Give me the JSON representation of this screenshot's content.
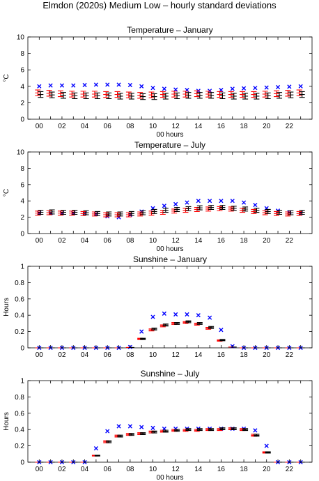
{
  "page_title": "Elmdon (2020s) Medium Low – hourly standard deviations",
  "colors": {
    "observed": "#0000ff",
    "ensemble": "#ff0000",
    "reference": "#000000"
  },
  "chart_data": [
    {
      "type": "scatter",
      "title": "Temperature – January",
      "xlabel": "00 hours",
      "ylabel": "°C",
      "ylim": [
        0,
        10
      ],
      "yticks": [
        "0",
        "2",
        "4",
        "6",
        "8",
        "10"
      ],
      "xticks": [
        "00",
        "02",
        "04",
        "06",
        "08",
        "10",
        "12",
        "14",
        "16",
        "18",
        "20",
        "22"
      ],
      "x": [
        0,
        1,
        2,
        3,
        4,
        5,
        6,
        7,
        8,
        9,
        10,
        11,
        12,
        13,
        14,
        15,
        16,
        17,
        18,
        19,
        20,
        21,
        22,
        23
      ],
      "series": [
        {
          "marker": "x",
          "color": "#0000ff",
          "values": [
            4.0,
            4.1,
            4.1,
            4.1,
            4.15,
            4.2,
            4.2,
            4.2,
            4.15,
            4.0,
            3.8,
            3.7,
            3.6,
            3.55,
            3.45,
            3.45,
            3.55,
            3.7,
            3.75,
            3.8,
            3.85,
            3.9,
            3.95,
            4.0
          ]
        },
        {
          "marker": "errorbar",
          "color": "#ff0000",
          "values": [
            3.2,
            3.15,
            3.1,
            3.05,
            3.05,
            3.05,
            3.0,
            3.0,
            2.95,
            2.9,
            2.95,
            3.0,
            3.05,
            3.05,
            3.1,
            3.05,
            3.0,
            3.0,
            3.0,
            3.0,
            3.05,
            3.1,
            3.15,
            3.2
          ],
          "err": [
            0.35,
            0.35,
            0.35,
            0.35,
            0.35,
            0.35,
            0.35,
            0.35,
            0.35,
            0.35,
            0.35,
            0.35,
            0.35,
            0.35,
            0.35,
            0.35,
            0.35,
            0.35,
            0.35,
            0.35,
            0.35,
            0.35,
            0.35,
            0.35
          ]
        },
        {
          "marker": "errorbar",
          "color": "#000000",
          "values": [
            3.0,
            2.95,
            2.9,
            2.85,
            2.85,
            2.85,
            2.85,
            2.8,
            2.8,
            2.75,
            2.75,
            2.8,
            2.85,
            2.9,
            2.9,
            2.9,
            2.85,
            2.8,
            2.8,
            2.8,
            2.85,
            2.9,
            2.95,
            3.0
          ],
          "err": [
            0.35,
            0.35,
            0.35,
            0.35,
            0.35,
            0.35,
            0.35,
            0.35,
            0.35,
            0.35,
            0.35,
            0.35,
            0.35,
            0.35,
            0.35,
            0.35,
            0.35,
            0.35,
            0.35,
            0.35,
            0.35,
            0.35,
            0.35,
            0.35
          ]
        }
      ]
    },
    {
      "type": "scatter",
      "title": "Temperature – July",
      "xlabel": "00 hours",
      "ylabel": "°C",
      "ylim": [
        0,
        10
      ],
      "yticks": [
        "0",
        "2",
        "4",
        "6",
        "8",
        "10"
      ],
      "xticks": [
        "00",
        "02",
        "04",
        "06",
        "08",
        "10",
        "12",
        "14",
        "16",
        "18",
        "20",
        "22"
      ],
      "x": [
        0,
        1,
        2,
        3,
        4,
        5,
        6,
        7,
        8,
        9,
        10,
        11,
        12,
        13,
        14,
        15,
        16,
        17,
        18,
        19,
        20,
        21,
        22,
        23
      ],
      "series": [
        {
          "marker": "x",
          "color": "#0000ff",
          "values": [
            2.5,
            2.5,
            2.5,
            2.5,
            2.5,
            2.4,
            2.1,
            2.0,
            2.3,
            2.7,
            3.1,
            3.4,
            3.6,
            3.8,
            4.0,
            4.0,
            4.0,
            4.0,
            3.8,
            3.5,
            3.1,
            2.8,
            2.6,
            2.5
          ]
        },
        {
          "marker": "errorbar",
          "color": "#ff0000",
          "values": [
            2.5,
            2.55,
            2.5,
            2.5,
            2.45,
            2.4,
            2.3,
            2.3,
            2.3,
            2.4,
            2.5,
            2.6,
            2.75,
            2.85,
            2.95,
            3.0,
            3.05,
            3.0,
            2.85,
            2.7,
            2.55,
            2.45,
            2.4,
            2.45
          ],
          "err": [
            0.25,
            0.25,
            0.25,
            0.25,
            0.25,
            0.25,
            0.25,
            0.25,
            0.25,
            0.25,
            0.25,
            0.25,
            0.25,
            0.25,
            0.25,
            0.25,
            0.25,
            0.25,
            0.25,
            0.25,
            0.25,
            0.25,
            0.25,
            0.25
          ]
        },
        {
          "marker": "errorbar",
          "color": "#000000",
          "values": [
            2.6,
            2.65,
            2.6,
            2.6,
            2.55,
            2.45,
            2.4,
            2.4,
            2.45,
            2.55,
            2.7,
            2.85,
            2.95,
            3.05,
            3.15,
            3.2,
            3.2,
            3.1,
            3.0,
            2.85,
            2.7,
            2.6,
            2.55,
            2.6
          ],
          "err": [
            0.25,
            0.25,
            0.25,
            0.25,
            0.25,
            0.25,
            0.25,
            0.25,
            0.25,
            0.25,
            0.25,
            0.25,
            0.25,
            0.25,
            0.25,
            0.25,
            0.25,
            0.25,
            0.25,
            0.25,
            0.25,
            0.25,
            0.25,
            0.25
          ]
        }
      ]
    },
    {
      "type": "scatter",
      "title": "Sunshine – January",
      "xlabel": "",
      "ylabel": "Hours",
      "ylim": [
        0,
        1
      ],
      "yticks": [
        "0",
        "0.2",
        "0.4",
        "0.6",
        "0.8",
        "1"
      ],
      "xticks": [
        "00",
        "02",
        "04",
        "06",
        "08",
        "10",
        "12",
        "14",
        "16",
        "18",
        "20",
        "22"
      ],
      "x": [
        0,
        1,
        2,
        3,
        4,
        5,
        6,
        7,
        8,
        9,
        10,
        11,
        12,
        13,
        14,
        15,
        16,
        17,
        18,
        19,
        20,
        21,
        22,
        23
      ],
      "series": [
        {
          "marker": "x",
          "color": "#0000ff",
          "values": [
            0,
            0,
            0,
            0,
            0,
            0,
            0,
            0,
            0.01,
            0.2,
            0.38,
            0.42,
            0.41,
            0.41,
            0.4,
            0.37,
            0.22,
            0.02,
            0,
            0,
            0,
            0,
            0,
            0
          ]
        },
        {
          "marker": "errorbar",
          "color": "#ff0000",
          "values": [
            0,
            0,
            0,
            0,
            0,
            0,
            0,
            0,
            0.005,
            0.11,
            0.22,
            0.27,
            0.3,
            0.31,
            0.29,
            0.24,
            0.09,
            0.01,
            0,
            0,
            0,
            0,
            0,
            0
          ],
          "err": [
            0,
            0,
            0,
            0,
            0,
            0,
            0,
            0,
            0,
            0.008,
            0.012,
            0.012,
            0.012,
            0.012,
            0.012,
            0.012,
            0.008,
            0,
            0,
            0,
            0,
            0,
            0,
            0
          ]
        },
        {
          "marker": "errorbar",
          "color": "#000000",
          "values": [
            0,
            0,
            0,
            0,
            0,
            0,
            0,
            0,
            0.005,
            0.11,
            0.23,
            0.28,
            0.3,
            0.32,
            0.3,
            0.25,
            0.095,
            0.01,
            0,
            0,
            0,
            0,
            0,
            0
          ],
          "err": [
            0,
            0,
            0,
            0,
            0,
            0,
            0,
            0,
            0,
            0.008,
            0.012,
            0.012,
            0.012,
            0.012,
            0.012,
            0.012,
            0.008,
            0,
            0,
            0,
            0,
            0,
            0,
            0
          ]
        }
      ]
    },
    {
      "type": "scatter",
      "title": "Sunshine – July",
      "xlabel": "00 hours",
      "ylabel": "Hours",
      "ylim": [
        0,
        1
      ],
      "yticks": [
        "0",
        "0.2",
        "0.4",
        "0.6",
        "0.8",
        "1"
      ],
      "xticks": [
        "00",
        "02",
        "04",
        "06",
        "08",
        "10",
        "12",
        "14",
        "16",
        "18",
        "20",
        "22"
      ],
      "x": [
        0,
        1,
        2,
        3,
        4,
        5,
        6,
        7,
        8,
        9,
        10,
        11,
        12,
        13,
        14,
        15,
        16,
        17,
        18,
        19,
        20,
        21,
        22,
        23
      ],
      "series": [
        {
          "marker": "x",
          "color": "#0000ff",
          "values": [
            0,
            0,
            0,
            0,
            0,
            0.17,
            0.38,
            0.44,
            0.44,
            0.43,
            0.42,
            0.41,
            0.41,
            0.41,
            0.41,
            0.41,
            0.41,
            0.41,
            0.41,
            0.39,
            0.2,
            0,
            0,
            0
          ]
        },
        {
          "marker": "errorbar",
          "color": "#ff0000",
          "values": [
            0,
            0,
            0,
            0,
            0,
            0.08,
            0.25,
            0.32,
            0.34,
            0.35,
            0.37,
            0.38,
            0.39,
            0.39,
            0.39,
            0.4,
            0.4,
            0.41,
            0.4,
            0.33,
            0.12,
            0,
            0,
            0
          ],
          "err": [
            0,
            0,
            0,
            0,
            0,
            0.005,
            0.012,
            0.012,
            0.012,
            0.012,
            0.012,
            0.012,
            0.012,
            0.012,
            0.012,
            0.012,
            0.012,
            0.012,
            0.012,
            0.012,
            0.008,
            0,
            0,
            0
          ]
        },
        {
          "marker": "errorbar",
          "color": "#000000",
          "values": [
            0,
            0,
            0,
            0,
            0,
            0.08,
            0.25,
            0.32,
            0.34,
            0.35,
            0.37,
            0.38,
            0.39,
            0.4,
            0.4,
            0.4,
            0.41,
            0.41,
            0.4,
            0.33,
            0.12,
            0,
            0,
            0
          ],
          "err": [
            0,
            0,
            0,
            0,
            0,
            0.005,
            0.012,
            0.012,
            0.012,
            0.012,
            0.012,
            0.012,
            0.012,
            0.012,
            0.012,
            0.012,
            0.012,
            0.012,
            0.012,
            0.012,
            0.008,
            0,
            0,
            0
          ]
        }
      ]
    }
  ]
}
